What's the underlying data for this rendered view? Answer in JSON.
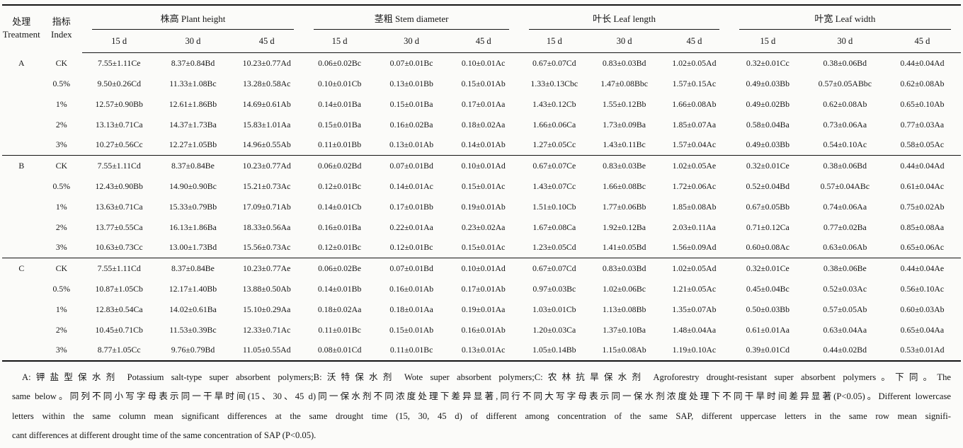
{
  "table": {
    "header": {
      "treatment_zh": "处理",
      "treatment_en": "Treatment",
      "index_zh": "指标",
      "index_en": "Index",
      "groups": [
        {
          "label": "株高 Plant height",
          "sub": [
            "15 d",
            "30 d",
            "45 d"
          ]
        },
        {
          "label": "茎粗 Stem diameter",
          "sub": [
            "15 d",
            "30 d",
            "45 d"
          ]
        },
        {
          "label": "叶长 Leaf length",
          "sub": [
            "15 d",
            "30 d",
            "45 d"
          ]
        },
        {
          "label": "叶宽 Leaf width",
          "sub": [
            "15 d",
            "30 d",
            "45 d"
          ]
        }
      ]
    },
    "treatments": [
      {
        "name": "A",
        "rows": [
          {
            "index": "CK",
            "values": [
              "7.55±1.11Ce",
              "8.37±0.84Bd",
              "10.23±0.77Ad",
              "0.06±0.02Bc",
              "0.07±0.01Bc",
              "0.10±0.01Ac",
              "0.67±0.07Cd",
              "0.83±0.03Bd",
              "1.02±0.05Ad",
              "0.32±0.01Cc",
              "0.38±0.06Bd",
              "0.44±0.04Ad"
            ]
          },
          {
            "index": "0.5%",
            "values": [
              "9.50±0.26Cd",
              "11.33±1.08Bc",
              "13.28±0.58Ac",
              "0.10±0.01Cb",
              "0.13±0.01Bb",
              "0.15±0.01Ab",
              "1.33±0.13Cbc",
              "1.47±0.08Bbc",
              "1.57±0.15Ac",
              "0.49±0.03Bb",
              "0.57±0.05ABbc",
              "0.62±0.08Ab"
            ]
          },
          {
            "index": "1%",
            "values": [
              "12.57±0.90Bb",
              "12.61±1.86Bb",
              "14.69±0.61Ab",
              "0.14±0.01Ba",
              "0.15±0.01Ba",
              "0.17±0.01Aa",
              "1.43±0.12Cb",
              "1.55±0.12Bb",
              "1.66±0.08Ab",
              "0.49±0.02Bb",
              "0.62±0.08Ab",
              "0.65±0.10Ab"
            ]
          },
          {
            "index": "2%",
            "values": [
              "13.13±0.71Ca",
              "14.37±1.73Ba",
              "15.83±1.01Aa",
              "0.15±0.01Ba",
              "0.16±0.02Ba",
              "0.18±0.02Aa",
              "1.66±0.06Ca",
              "1.73±0.09Ba",
              "1.85±0.07Aa",
              "0.58±0.04Ba",
              "0.73±0.06Aa",
              "0.77±0.03Aa"
            ]
          },
          {
            "index": "3%",
            "values": [
              "10.27±0.56Cc",
              "12.27±1.05Bb",
              "14.96±0.55Ab",
              "0.11±0.01Bb",
              "0.13±0.01Ab",
              "0.14±0.01Ab",
              "1.27±0.05Cc",
              "1.43±0.11Bc",
              "1.57±0.04Ac",
              "0.49±0.03Bb",
              "0.54±0.10Ac",
              "0.58±0.05Ac"
            ]
          }
        ]
      },
      {
        "name": "B",
        "rows": [
          {
            "index": "CK",
            "values": [
              "7.55±1.11Cd",
              "8.37±0.84Be",
              "10.23±0.77Ad",
              "0.06±0.02Bd",
              "0.07±0.01Bd",
              "0.10±0.01Ad",
              "0.67±0.07Ce",
              "0.83±0.03Be",
              "1.02±0.05Ae",
              "0.32±0.01Ce",
              "0.38±0.06Bd",
              "0.44±0.04Ad"
            ]
          },
          {
            "index": "0.5%",
            "values": [
              "12.43±0.90Bb",
              "14.90±0.90Bc",
              "15.21±0.73Ac",
              "0.12±0.01Bc",
              "0.14±0.01Ac",
              "0.15±0.01Ac",
              "1.43±0.07Cc",
              "1.66±0.08Bc",
              "1.72±0.06Ac",
              "0.52±0.04Bd",
              "0.57±0.04ABc",
              "0.61±0.04Ac"
            ]
          },
          {
            "index": "1%",
            "values": [
              "13.63±0.71Ca",
              "15.33±0.79Bb",
              "17.09±0.71Ab",
              "0.14±0.01Cb",
              "0.17±0.01Bb",
              "0.19±0.01Ab",
              "1.51±0.10Cb",
              "1.77±0.06Bb",
              "1.85±0.08Ab",
              "0.67±0.05Bb",
              "0.74±0.06Aa",
              "0.75±0.02Ab"
            ]
          },
          {
            "index": "2%",
            "values": [
              "13.77±0.55Ca",
              "16.13±1.86Ba",
              "18.33±0.56Aa",
              "0.16±0.01Ba",
              "0.22±0.01Aa",
              "0.23±0.02Aa",
              "1.67±0.08Ca",
              "1.92±0.12Ba",
              "2.03±0.11Aa",
              "0.71±0.12Ca",
              "0.77±0.02Ba",
              "0.85±0.08Aa"
            ]
          },
          {
            "index": "3%",
            "values": [
              "10.63±0.73Cc",
              "13.00±1.73Bd",
              "15.56±0.73Ac",
              "0.12±0.01Bc",
              "0.12±0.01Bc",
              "0.15±0.01Ac",
              "1.23±0.05Cd",
              "1.41±0.05Bd",
              "1.56±0.09Ad",
              "0.60±0.08Ac",
              "0.63±0.06Ab",
              "0.65±0.06Ac"
            ]
          }
        ]
      },
      {
        "name": "C",
        "rows": [
          {
            "index": "CK",
            "values": [
              "7.55±1.11Cd",
              "8.37±0.84Be",
              "10.23±0.77Ae",
              "0.06±0.02Be",
              "0.07±0.01Bd",
              "0.10±0.01Ad",
              "0.67±0.07Cd",
              "0.83±0.03Bd",
              "1.02±0.05Ad",
              "0.32±0.01Ce",
              "0.38±0.06Be",
              "0.44±0.04Ae"
            ]
          },
          {
            "index": "0.5%",
            "values": [
              "10.87±1.05Cb",
              "12.17±1.40Bb",
              "13.88±0.50Ab",
              "0.14±0.01Bb",
              "0.16±0.01Ab",
              "0.17±0.01Ab",
              "0.97±0.03Bc",
              "1.02±0.06Bc",
              "1.21±0.05Ac",
              "0.45±0.04Bc",
              "0.52±0.03Ac",
              "0.56±0.10Ac"
            ]
          },
          {
            "index": "1%",
            "values": [
              "12.83±0.54Ca",
              "14.02±0.61Ba",
              "15.10±0.29Aa",
              "0.18±0.02Aa",
              "0.18±0.01Aa",
              "0.19±0.01Aa",
              "1.03±0.01Cb",
              "1.13±0.08Bb",
              "1.35±0.07Ab",
              "0.50±0.03Bb",
              "0.57±0.05Ab",
              "0.60±0.03Ab"
            ]
          },
          {
            "index": "2%",
            "values": [
              "10.45±0.71Cb",
              "11.53±0.39Bc",
              "12.33±0.71Ac",
              "0.11±0.01Bc",
              "0.15±0.01Ab",
              "0.16±0.01Ab",
              "1.20±0.03Ca",
              "1.37±0.10Ba",
              "1.48±0.04Aa",
              "0.61±0.01Aa",
              "0.63±0.04Aa",
              "0.65±0.04Aa"
            ]
          },
          {
            "index": "3%",
            "values": [
              "8.77±1.05Cc",
              "9.76±0.79Bd",
              "11.05±0.55Ad",
              "0.08±0.01Cd",
              "0.11±0.01Bc",
              "0.13±0.01Ac",
              "1.05±0.14Bb",
              "1.15±0.08Ab",
              "1.19±0.10Ac",
              "0.39±0.01Cd",
              "0.44±0.02Bd",
              "0.53±0.01Ad"
            ]
          }
        ]
      }
    ]
  },
  "footnote": {
    "lines": [
      "A:钾盐型保水剂 Potassium salt-type super absorbent polymers;B:沃特保水剂 Wote super absorbent polymers;C:农林抗旱保水剂 Agroforestry drought-resistant super absorbent polymers。下同。The",
      "same below。同列不同小写字母表示同一干旱时间(15、30、45 d)同一保水剂不同浓度处理下差异显著,同行不同大写字母表示同一保水剂浓度处理下不同干旱时间差异显著(P<0.05)。Different lowercase",
      "letters within the same column mean significant differences at the same drought time (15, 30, 45 d) of different among concentration of the same SAP, different uppercase letters in the same row mean signifi-",
      "cant differences at different drought time of the same concentration of SAP (P<0.05)."
    ]
  }
}
